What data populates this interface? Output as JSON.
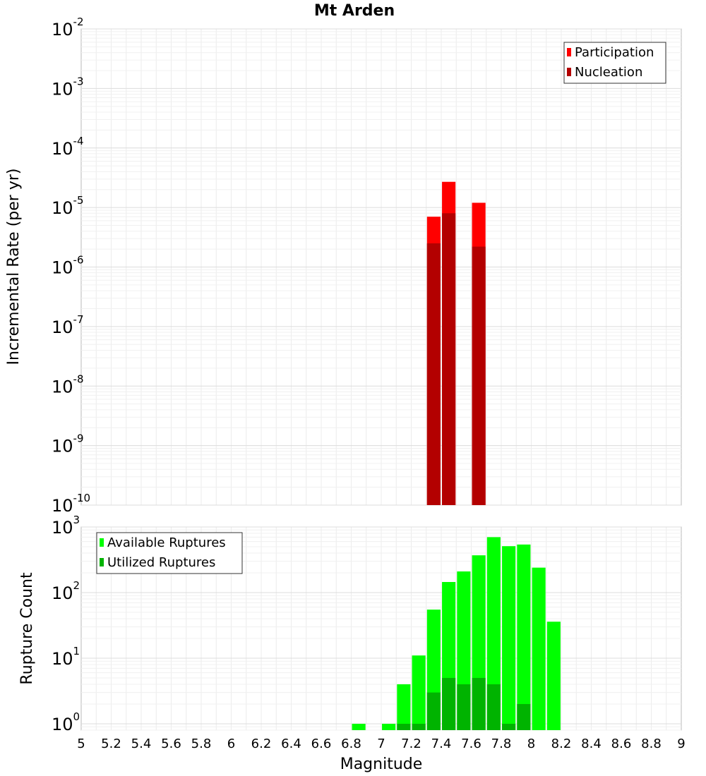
{
  "title": "Mt Arden",
  "xlabel": "Magnitude",
  "x_ticks": [
    "5",
    "5.2",
    "5.4",
    "5.6",
    "5.8",
    "6",
    "6.2",
    "6.4",
    "6.6",
    "6.8",
    "7",
    "7.2",
    "7.4",
    "7.6",
    "7.8",
    "8",
    "8.2",
    "8.4",
    "8.6",
    "8.8",
    "9"
  ],
  "chart_data": [
    {
      "type": "bar",
      "ylabel": "Incremental Rate (per yr)",
      "yscale": "log",
      "xlim": [
        5,
        9
      ],
      "ylim": [
        1e-10,
        0.01
      ],
      "y_tick_exponents": [
        "-10",
        "-9",
        "-8",
        "-7",
        "-6",
        "-5",
        "-4",
        "-3",
        "-2"
      ],
      "grid": true,
      "legend_position": "top-right",
      "bar_width": 0.09,
      "series": [
        {
          "name": "Participation",
          "color": "#ff0000",
          "x": [
            7.35,
            7.45,
            7.65
          ],
          "values": [
            7e-06,
            2.7e-05,
            1.2e-05
          ]
        },
        {
          "name": "Nucleation",
          "color": "#b30000",
          "x": [
            7.35,
            7.45,
            7.65
          ],
          "values": [
            2.5e-06,
            8e-06,
            2.2e-06
          ]
        }
      ]
    },
    {
      "type": "bar",
      "ylabel": "Rupture Count",
      "yscale": "log",
      "xlim": [
        5,
        9
      ],
      "ylim": [
        0.8,
        1000
      ],
      "y_tick_exponents": [
        "0",
        "1",
        "2",
        "3"
      ],
      "grid": true,
      "legend_position": "top-left",
      "bar_width": 0.09,
      "series": [
        {
          "name": "Available Ruptures",
          "color": "#00ff00",
          "x": [
            6.85,
            7.05,
            7.15,
            7.25,
            7.35,
            7.45,
            7.55,
            7.65,
            7.75,
            7.85,
            7.95,
            8.05,
            8.15
          ],
          "values": [
            1,
            1,
            4,
            11,
            55,
            145,
            210,
            370,
            700,
            510,
            540,
            240,
            36
          ]
        },
        {
          "name": "Utilized Ruptures",
          "color": "#00b300",
          "x": [
            7.15,
            7.25,
            7.35,
            7.45,
            7.55,
            7.65,
            7.75,
            7.85,
            7.95
          ],
          "values": [
            1,
            1,
            3,
            5,
            4,
            5,
            4,
            1,
            2
          ]
        }
      ]
    }
  ]
}
